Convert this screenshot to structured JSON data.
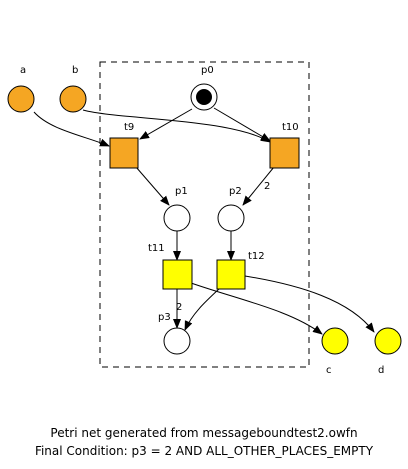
{
  "colors": {
    "interface_place": "#f5a623",
    "output_place": "#ffff00",
    "transition_interface": "#f5a623",
    "transition_internal": "#ffff00",
    "stroke": "#000000",
    "background": "#ffffff"
  },
  "places": {
    "a": "a",
    "b": "b",
    "p0": "p0",
    "p1": "p1",
    "p2": "p2",
    "p3": "p3",
    "c": "c",
    "d": "d"
  },
  "transitions": {
    "t9": "t9",
    "t10": "t10",
    "t11": "t11",
    "t12": "t12"
  },
  "arc_weights": {
    "t10_p2": "2",
    "t11_p3": "2"
  },
  "initial_marking": {
    "p0": 1
  },
  "caption": {
    "line1": "Petri net generated from messageboundtest2.owfn",
    "line2": "Final Condition: p3 = 2 AND ALL_OTHER_PLACES_EMPTY"
  }
}
